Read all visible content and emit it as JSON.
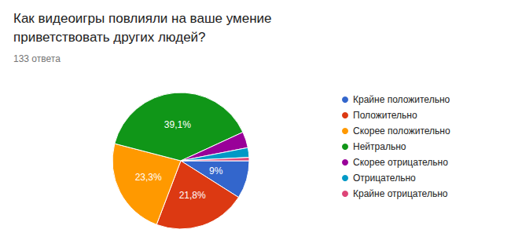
{
  "chart_data": {
    "type": "pie",
    "title": "Как видеоигры повлияли на ваше умение приветствовать других людей?",
    "subtitle": "133 ответа",
    "categories": [
      "Крайне положительно",
      "Положительно",
      "Скорее положительно",
      "Нейтрально",
      "Скорее отрицательно",
      "Отрицательно",
      "Крайне отрицательно"
    ],
    "values": [
      9,
      21.8,
      23.3,
      39.1,
      3.8,
      2.3,
      0.8
    ],
    "value_labels": [
      "9%",
      "21,8%",
      "23,3%",
      "39,1%",
      null,
      null,
      null
    ],
    "colors": [
      "#3366cc",
      "#dc3912",
      "#ff9900",
      "#109618",
      "#990099",
      "#0099c6",
      "#dd4477"
    ],
    "data_labels": true,
    "legend": "right"
  }
}
